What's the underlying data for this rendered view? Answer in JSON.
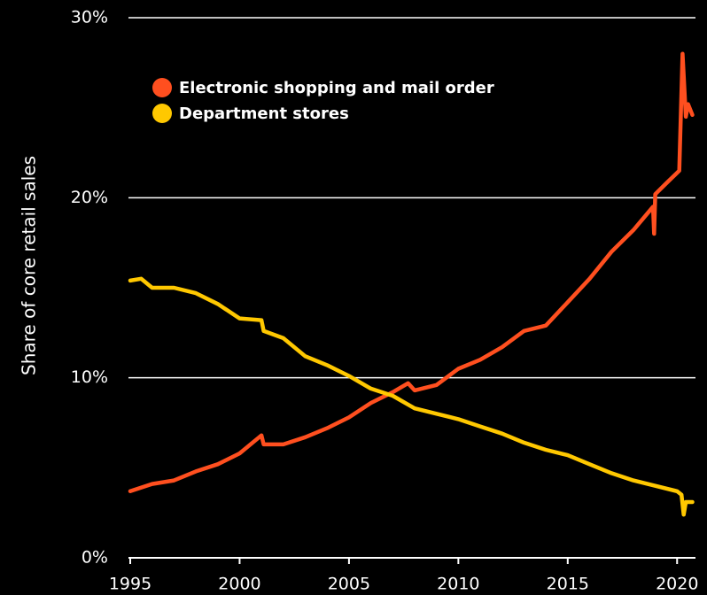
{
  "chart_data": {
    "type": "line",
    "y_label": "Share of core retail sales",
    "xlim": [
      1995,
      2020.8
    ],
    "xticks": [
      1995,
      2000,
      2005,
      2010,
      2015,
      2020
    ],
    "ylim": [
      0,
      30
    ],
    "yticks": [
      {
        "value": 0,
        "label": "0%"
      },
      {
        "value": 10,
        "label": "10%"
      },
      {
        "value": 20,
        "label": "20%"
      },
      {
        "value": 30,
        "label": "30%"
      }
    ],
    "grid": true,
    "legend": "upper left",
    "series": [
      {
        "name": "Electronic shopping and mail order",
        "color": "#ff4f1f",
        "x": [
          1995,
          1996,
          1997,
          1998,
          1999,
          2000,
          2001,
          2001.1,
          2002,
          2003,
          2004,
          2005,
          2006,
          2007,
          2007.7,
          2008,
          2009,
          2010,
          2011,
          2012,
          2013,
          2014,
          2015,
          2016,
          2017,
          2018,
          2018.9,
          2018.95,
          2019,
          2019.5,
          2020.1,
          2020.25,
          2020.4,
          2020.5,
          2020.7
        ],
        "values": [
          3.7,
          4.1,
          4.3,
          4.8,
          5.2,
          5.8,
          6.8,
          6.3,
          6.3,
          6.7,
          7.2,
          7.8,
          8.6,
          9.2,
          9.7,
          9.3,
          9.6,
          10.5,
          11.0,
          11.7,
          12.6,
          12.9,
          14.2,
          15.5,
          17.0,
          18.2,
          19.5,
          18.0,
          20.2,
          20.8,
          21.5,
          28.0,
          24.5,
          25.2,
          24.6
        ]
      },
      {
        "name": "Department stores",
        "color": "#ffc800",
        "x": [
          1995,
          1995.5,
          1996,
          1997,
          1998,
          1999,
          2000,
          2001,
          2001.1,
          2002,
          2003,
          2004,
          2005,
          2006,
          2007,
          2008,
          2009,
          2010,
          2011,
          2012,
          2013,
          2014,
          2015,
          2016,
          2017,
          2018,
          2019,
          2020,
          2020.2,
          2020.3,
          2020.4,
          2020.7
        ],
        "values": [
          15.4,
          15.5,
          15.0,
          15.0,
          14.7,
          14.1,
          13.3,
          13.2,
          12.6,
          12.2,
          11.2,
          10.7,
          10.1,
          9.4,
          9.0,
          8.3,
          8.0,
          7.7,
          7.3,
          6.9,
          6.4,
          6.0,
          5.7,
          5.2,
          4.7,
          4.3,
          4.0,
          3.7,
          3.5,
          2.4,
          3.1,
          3.1
        ]
      }
    ]
  }
}
